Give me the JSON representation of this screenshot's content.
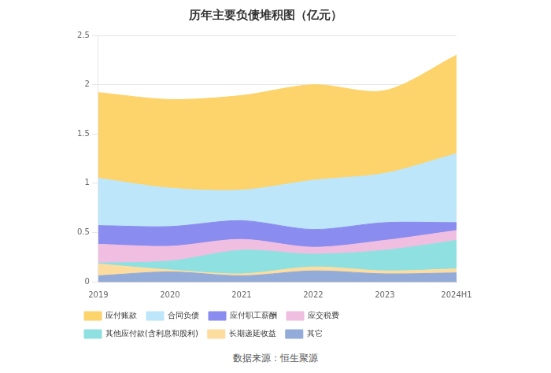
{
  "chart_data": {
    "type": "area",
    "title": "历年主要负债堆积图（亿元）",
    "source": "数据来源：恒生聚源",
    "categories": [
      "2019",
      "2020",
      "2021",
      "2022",
      "2023",
      "2024H1"
    ],
    "series": [
      {
        "name": "应付账款",
        "color": "#fdd36b",
        "values": [
          0.87,
          0.9,
          0.96,
          0.97,
          0.84,
          1.0
        ]
      },
      {
        "name": "合同负债",
        "color": "#bde6fa",
        "values": [
          0.48,
          0.39,
          0.31,
          0.5,
          0.5,
          0.7
        ]
      },
      {
        "name": "应付职工薪酬",
        "color": "#8a8cf0",
        "values": [
          0.19,
          0.2,
          0.19,
          0.18,
          0.18,
          0.08
        ]
      },
      {
        "name": "应交税费",
        "color": "#f0bee0",
        "values": [
          0.19,
          0.15,
          0.11,
          0.07,
          0.1,
          0.1
        ]
      },
      {
        "name": "其他应付款(含利息和股利)",
        "color": "#8fe0e0",
        "values": [
          0.01,
          0.09,
          0.24,
          0.13,
          0.21,
          0.29
        ]
      },
      {
        "name": "长期递延收益",
        "color": "#fddca0",
        "values": [
          0.12,
          0.02,
          0.02,
          0.04,
          0.03,
          0.04
        ]
      },
      {
        "name": "其它",
        "color": "#92abd8",
        "values": [
          0.06,
          0.1,
          0.06,
          0.11,
          0.08,
          0.09
        ]
      }
    ],
    "ylim": [
      0,
      2.5
    ],
    "yticks": [
      0,
      0.5,
      1,
      1.5,
      2,
      2.5
    ],
    "stacked": true,
    "grid": true,
    "legend": "bottom"
  }
}
